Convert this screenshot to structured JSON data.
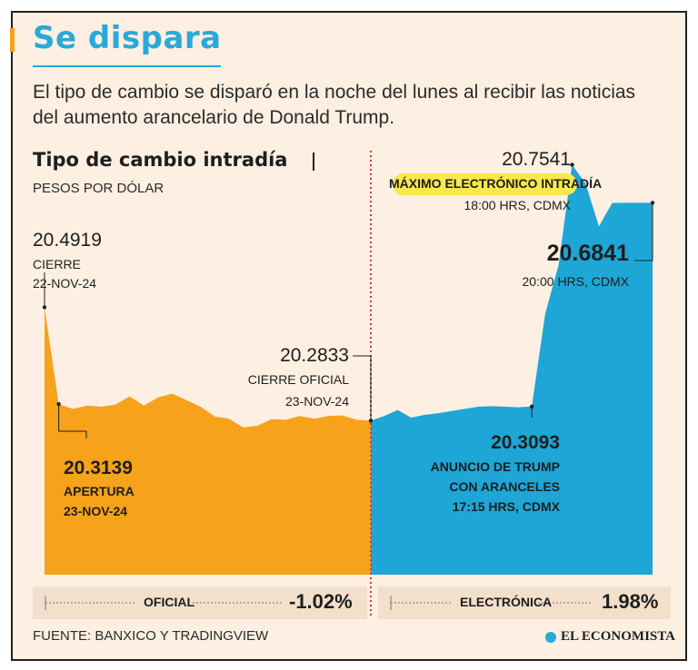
{
  "header": {
    "title": "Se dispara",
    "subtitle": "El tipo de cambio se disparó en la noche del lunes al recibir las noticias del aumento arancelario de Donald Trump."
  },
  "chart_header": {
    "title": "Tipo de cambio intradía",
    "unit": "PESOS POR DÓLAR"
  },
  "colors": {
    "oficial": "#f7a21b",
    "electronica": "#1da6d6",
    "divider": "#d8353a",
    "background": "#fdefe2",
    "highlight": "#f7e84b"
  },
  "chart_data": [
    {
      "type": "area",
      "name": "OFICIAL",
      "change": "-1.02%",
      "x": [
        0,
        1,
        2,
        3,
        4,
        5,
        6,
        7,
        8,
        9,
        10,
        11,
        12,
        13,
        14,
        15,
        16,
        17,
        18,
        19,
        20,
        21,
        22,
        23
      ],
      "values": [
        20.4919,
        20.3139,
        20.305,
        20.311,
        20.309,
        20.313,
        20.328,
        20.311,
        20.326,
        20.333,
        20.321,
        20.309,
        20.291,
        20.287,
        20.271,
        20.274,
        20.286,
        20.285,
        20.292,
        20.287,
        20.292,
        20.293,
        20.285,
        20.2833
      ],
      "ylim": [
        20.0,
        20.78
      ]
    },
    {
      "type": "area",
      "name": "ELECTRÓNICA",
      "change": "1.98%",
      "x": [
        0,
        1,
        2,
        3,
        4,
        5,
        6,
        7,
        8,
        9,
        10,
        11,
        12,
        13,
        14,
        15,
        16,
        17,
        18,
        19,
        20,
        21
      ],
      "values": [
        20.2833,
        20.292,
        20.303,
        20.289,
        20.294,
        20.297,
        20.301,
        20.305,
        20.309,
        20.31,
        20.309,
        20.308,
        20.3093,
        20.48,
        20.57,
        20.7541,
        20.72,
        20.641,
        20.684,
        20.6841,
        20.6841,
        20.6841
      ],
      "ylim": [
        20.0,
        20.78
      ]
    }
  ],
  "annotations": {
    "open_value": "20.4919",
    "open_l1": "CIERRE",
    "open_l2": "22-NOV-24",
    "apertura_value": "20.3139",
    "apertura_l1": "APERTURA",
    "apertura_l2": "23-NOV-24",
    "cierre_value": "20.2833",
    "cierre_l1": "CIERRE OFICIAL",
    "cierre_l2": "23-NOV-24",
    "anuncio_value": "20.3093",
    "anuncio_l1": "ANUNCIO DE TRUMP",
    "anuncio_l2": "CON ARANCELES",
    "anuncio_l3": "17:15 HRS, CDMX",
    "max_value": "20.7541",
    "max_l1": "MÁXIMO ELECTRÓNICO INTRADÍA",
    "max_l2": "18:00 HRS, CDMX",
    "last_value": "20.6841",
    "last_l1": "20:00 HRS, CDMX"
  },
  "footer": {
    "source": "FUENTE: BANXICO Y TRADINGVIEW",
    "brand": "EL ECONOMISTA"
  }
}
